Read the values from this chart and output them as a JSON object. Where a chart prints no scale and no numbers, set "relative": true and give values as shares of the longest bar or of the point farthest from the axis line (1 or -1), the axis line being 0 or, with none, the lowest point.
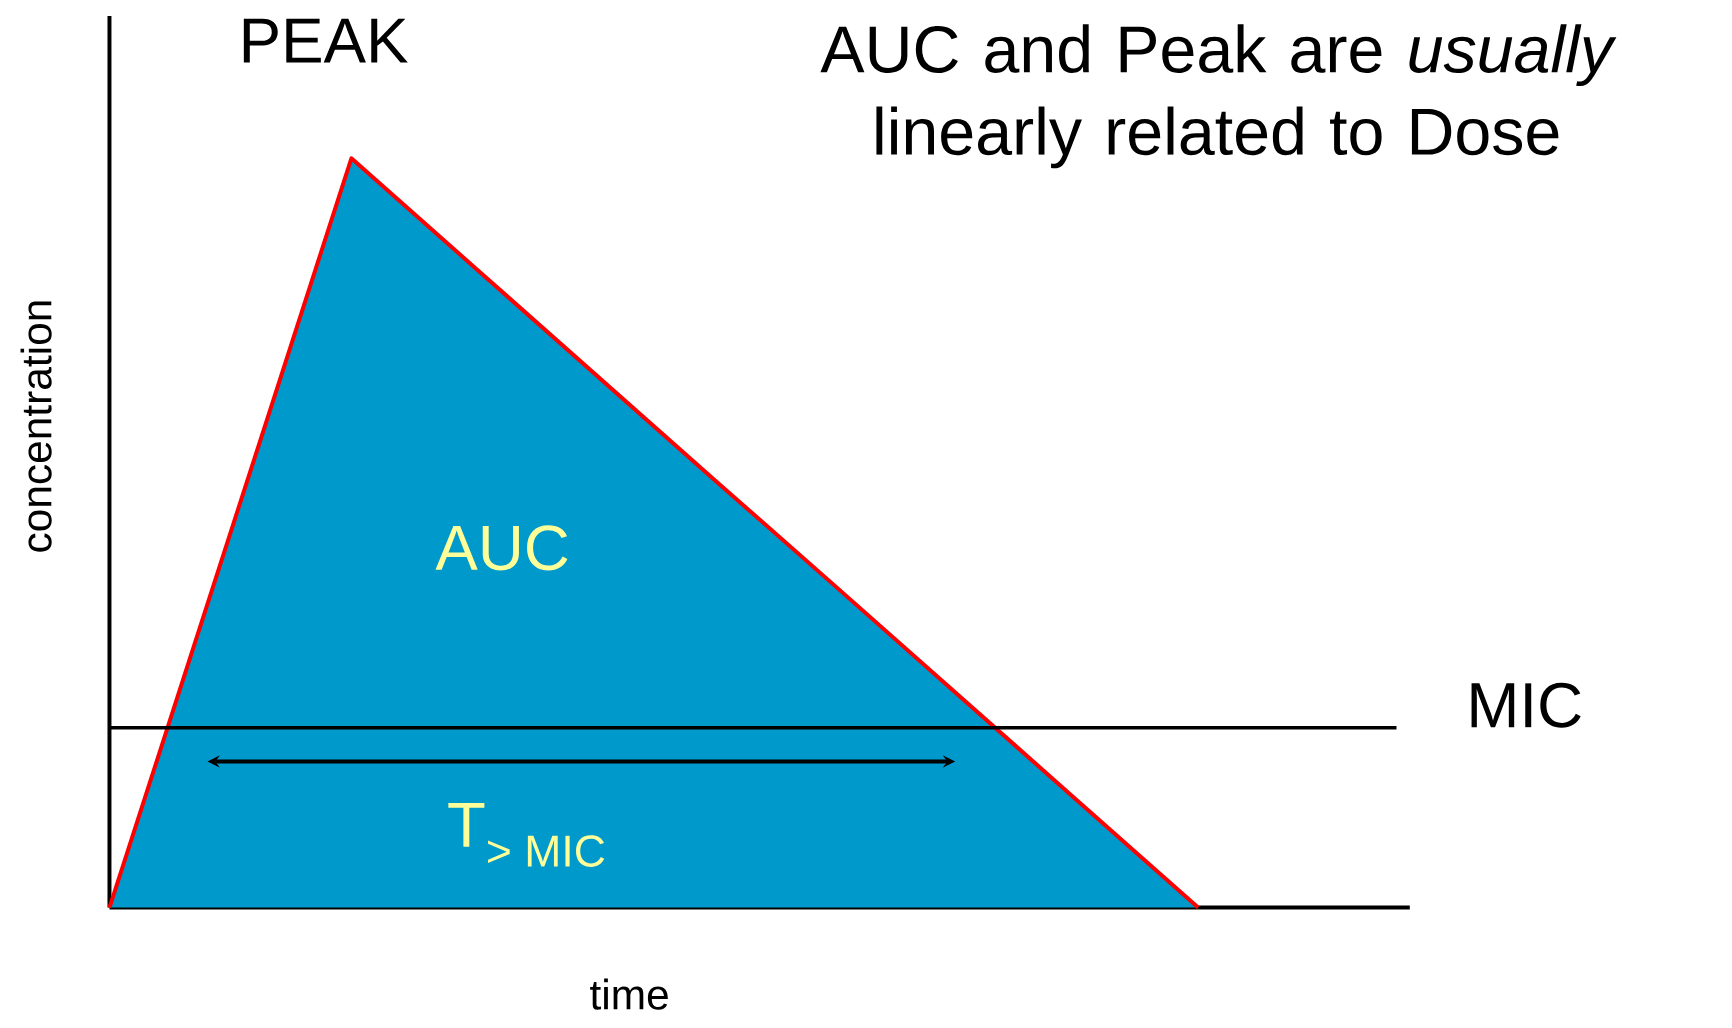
{
  "chart_data": {
    "type": "area",
    "relative": true,
    "title": "AUC and Peak are *usually* linearly related to Dose",
    "xlabel": "time",
    "ylabel": "concentration",
    "categories": [
      null,
      null,
      null,
      null,
      null,
      null,
      null,
      null,
      null,
      null
    ],
    "series": [
      {
        "color": "#0099cc",
        "values": [
          0,
          0.5,
          1,
          0.857,
          0.714,
          0.571,
          0.429,
          0.286,
          0.143,
          0
        ]
      }
    ],
    "ref_lines": [
      {
        "axis": "y",
        "value": 0.24,
        "label": "MIC",
        "color": "#000000"
      }
    ],
    "annotations": [
      "PEAK",
      "AUC",
      "T$_{> MIC}$"
    ]
  }
}
